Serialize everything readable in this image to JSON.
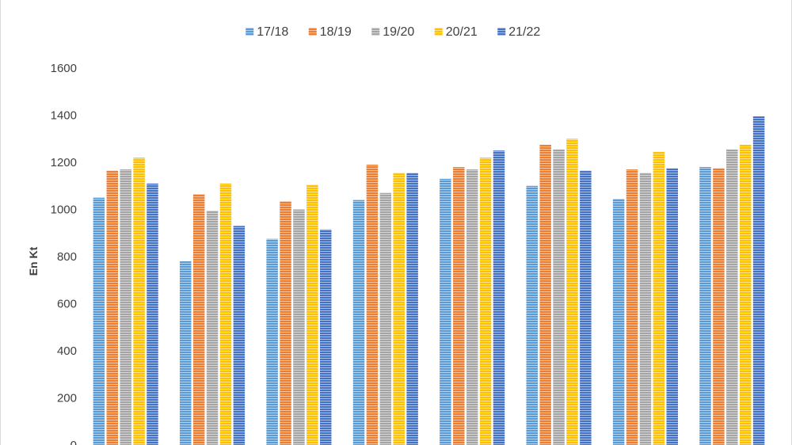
{
  "chart_data": {
    "type": "bar",
    "title": "",
    "xlabel": "",
    "ylabel": "En Kt",
    "ylim": [
      0,
      1600
    ],
    "yticks": [
      0,
      200,
      400,
      600,
      800,
      1000,
      1200,
      1400,
      1600
    ],
    "categories": [
      "",
      "",
      "",
      "",
      "",
      "",
      "",
      ""
    ],
    "legend_position": "top-center",
    "grid": false,
    "bar_style": "horizontal-striped",
    "series": [
      {
        "name": "17/18",
        "color": "#5b9bd5",
        "values": [
          1050,
          780,
          875,
          1040,
          1130,
          1100,
          1045,
          1180
        ]
      },
      {
        "name": "18/19",
        "color": "#ed7d31",
        "values": [
          1165,
          1065,
          1035,
          1190,
          1180,
          1275,
          1170,
          1175
        ]
      },
      {
        "name": "19/20",
        "color": "#a5a5a5",
        "values": [
          1170,
          995,
          1000,
          1070,
          1170,
          1255,
          1155,
          1255
        ]
      },
      {
        "name": "20/21",
        "color": "#ffc000",
        "values": [
          1220,
          1110,
          1105,
          1155,
          1220,
          1300,
          1245,
          1275
        ]
      },
      {
        "name": "21/22",
        "color": "#4472c4",
        "values": [
          1110,
          930,
          915,
          1155,
          1250,
          1165,
          1175,
          1395
        ]
      }
    ]
  }
}
